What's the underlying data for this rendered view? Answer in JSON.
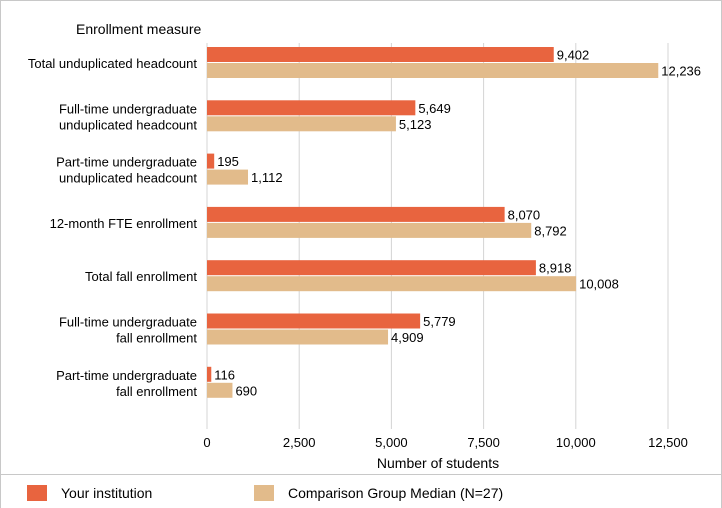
{
  "chart_data": {
    "type": "bar",
    "orientation": "horizontal",
    "title": "Enrollment measure",
    "xlabel": "Number of students",
    "xlim": [
      0,
      12500
    ],
    "xticks": [
      0,
      2500,
      5000,
      7500,
      10000,
      12500
    ],
    "xtick_labels": [
      "0",
      "2,500",
      "5,000",
      "7,500",
      "10,000",
      "12,500"
    ],
    "grid": "vertical",
    "legend_position": "bottom",
    "categories": [
      [
        "Total unduplicated headcount"
      ],
      [
        "Full-time undergraduate",
        "unduplicated headcount"
      ],
      [
        "Part-time undergraduate",
        "unduplicated headcount"
      ],
      [
        "12-month FTE enrollment"
      ],
      [
        "Total fall enrollment"
      ],
      [
        "Full-time undergraduate",
        "fall enrollment"
      ],
      [
        "Part-time undergraduate",
        "fall enrollment"
      ]
    ],
    "series": [
      {
        "name": "Your institution",
        "color": "#e8643f",
        "values": [
          9402,
          5649,
          195,
          8070,
          8918,
          5779,
          116
        ],
        "labels": [
          "9,402",
          "5,649",
          "195",
          "8,070",
          "8,918",
          "5,779",
          "116"
        ]
      },
      {
        "name": "Comparison Group Median (N=27)",
        "color": "#e2bb8b",
        "values": [
          12236,
          5123,
          1112,
          8792,
          10008,
          4909,
          690
        ],
        "labels": [
          "12,236",
          "5,123",
          "1,112",
          "8,792",
          "10,008",
          "4,909",
          "690"
        ]
      }
    ]
  },
  "legend": {
    "institution": "Your institution",
    "comparison": "Comparison Group Median (N=27)"
  }
}
